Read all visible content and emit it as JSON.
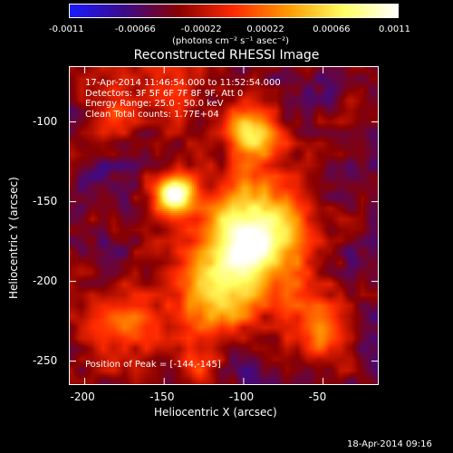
{
  "colorbar": {
    "ticks": [
      "-0.0011",
      "-0.00066",
      "-0.00022",
      "0.00022",
      "0.00066",
      "0.0011"
    ],
    "unit_label": "(photons cm⁻² s⁻¹ asec⁻²)",
    "colors": [
      "#1a1aff",
      "#3b0a8a",
      "#8a0000",
      "#ff2a00",
      "#ff9a00",
      "#ffff60",
      "#ffffff"
    ]
  },
  "chart_data": {
    "type": "heatmap",
    "title": "Reconstructed RHESSI Image",
    "xlabel": "Heliocentric X (arcsec)",
    "ylabel": "Heliocentric Y (arcsec)",
    "xlim": [
      -210,
      -15
    ],
    "ylim": [
      -265,
      -65
    ],
    "xticks": [
      -200,
      -150,
      -100,
      -50
    ],
    "yticks": [
      -100,
      -150,
      -200,
      -250
    ],
    "annotations": [
      "17-Apr-2014 11:46:54.000 to 11:52:54.000",
      "Detectors: 3F 5F 6F 7F 8F 9F, Att 0",
      "Energy Range: 25.0 - 50.0 keV",
      "Clean     Total counts: 1.77E+04"
    ],
    "peak_label": "Position of Peak = [-144,-145]",
    "peak": [
      -144,
      -145
    ],
    "sources": [
      {
        "x": -144,
        "y": -145,
        "amp": 1.0,
        "sigma": 9
      },
      {
        "x": -95,
        "y": -105,
        "amp": 0.72,
        "sigma": 12
      },
      {
        "x": -90,
        "y": -160,
        "amp": 0.55,
        "sigma": 25
      },
      {
        "x": -100,
        "y": -185,
        "amp": 0.65,
        "sigma": 22
      },
      {
        "x": -120,
        "y": -215,
        "amp": 0.45,
        "sigma": 16
      },
      {
        "x": -55,
        "y": -230,
        "amp": 0.45,
        "sigma": 16
      },
      {
        "x": -175,
        "y": -225,
        "amp": 0.4,
        "sigma": 18
      },
      {
        "x": -150,
        "y": -75,
        "amp": 0.3,
        "sigma": 20
      },
      {
        "x": -185,
        "y": -95,
        "amp": 0.25,
        "sigma": 12
      },
      {
        "x": -130,
        "y": -255,
        "amp": 0.3,
        "sigma": 12
      }
    ]
  },
  "footer": {
    "timestamp": "18-Apr-2014 09:16"
  }
}
